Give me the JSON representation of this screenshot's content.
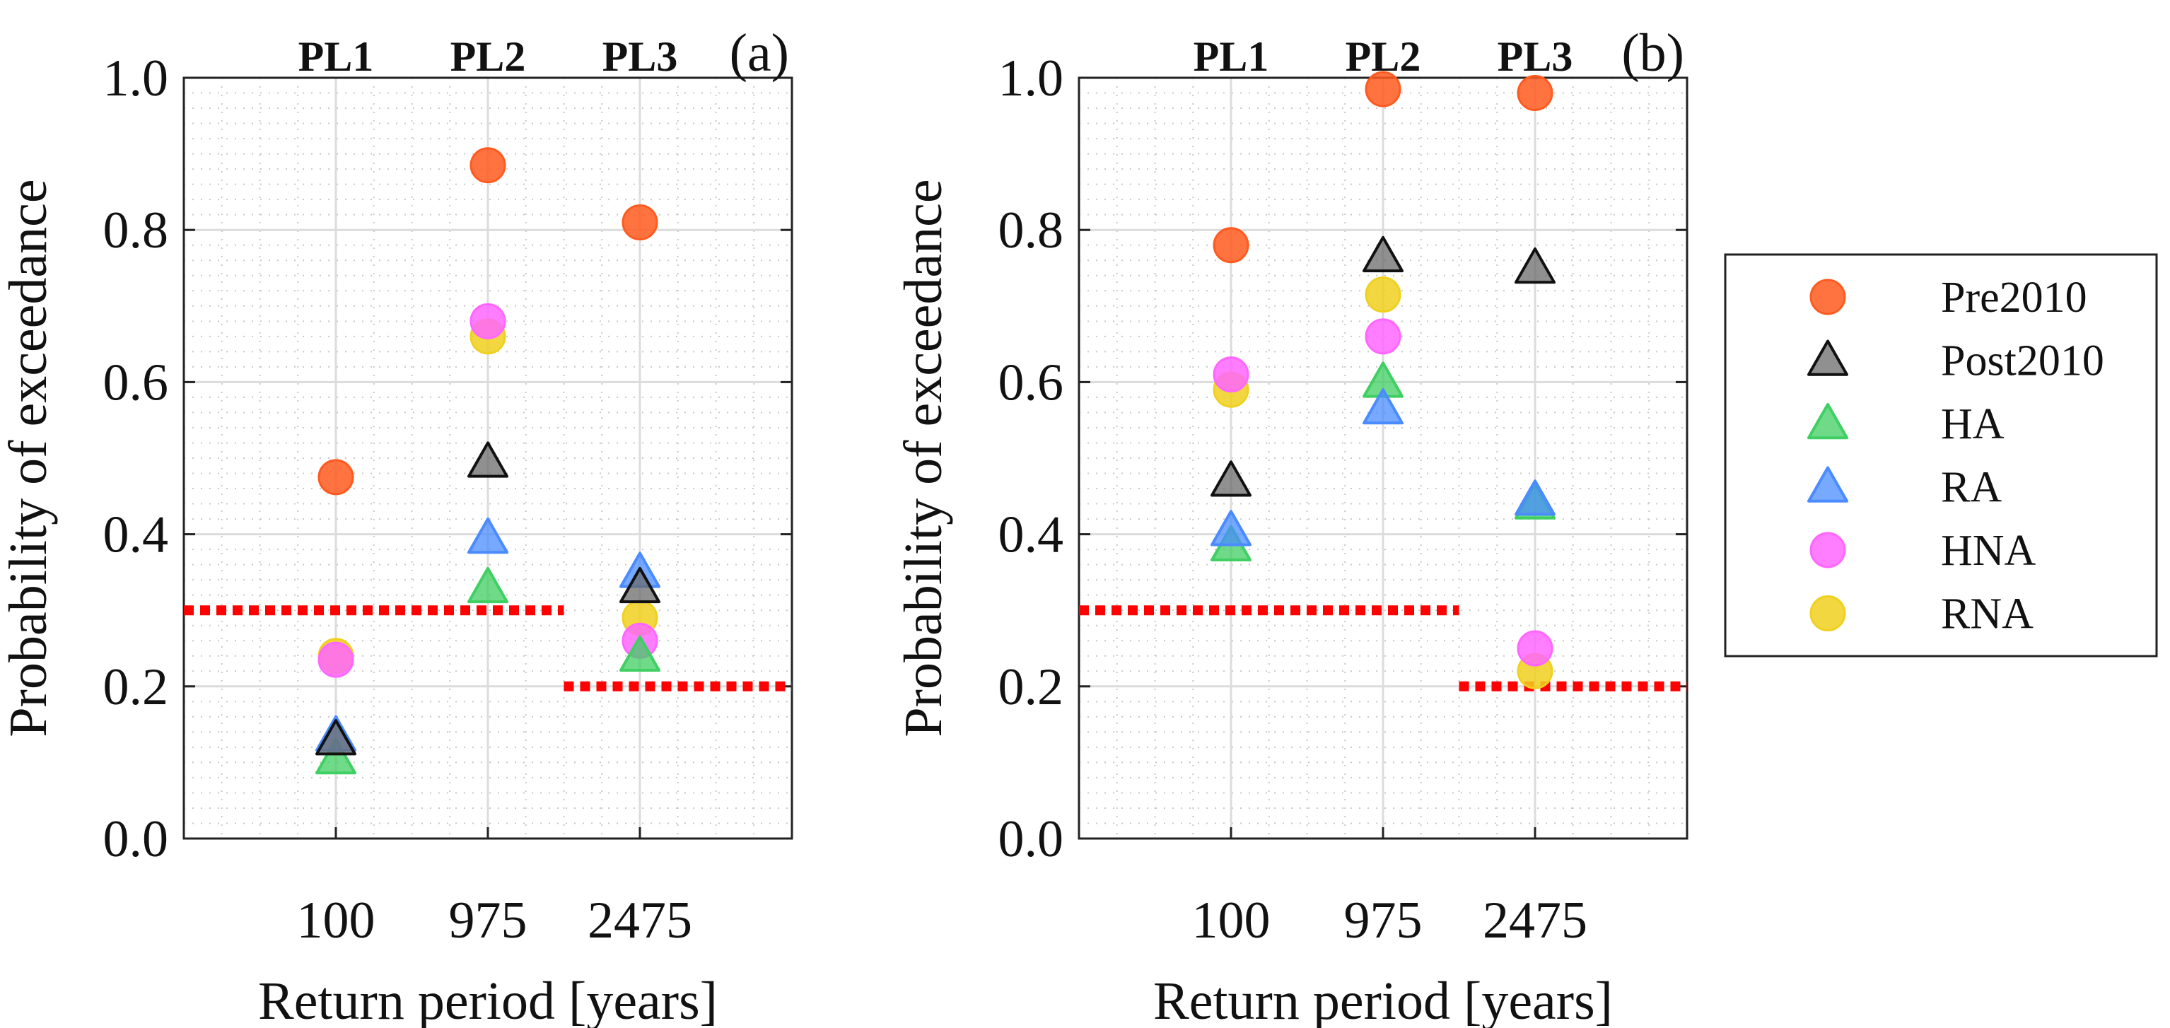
{
  "colors": {
    "Pre2010": "#ff5a1f",
    "Post2010": "#6b6b6b",
    "HA": "#3fcf62",
    "RA": "#4a8cff",
    "HNA": "#ff66ff",
    "RNA": "#f0d01f",
    "threshold": "#ff0000"
  },
  "legend": [
    {
      "name": "Pre2010",
      "marker": "circle"
    },
    {
      "name": "Post2010",
      "marker": "triangle"
    },
    {
      "name": "HA",
      "marker": "triangle"
    },
    {
      "name": "RA",
      "marker": "triangle"
    },
    {
      "name": "HNA",
      "marker": "circle"
    },
    {
      "name": "RNA",
      "marker": "circle"
    }
  ],
  "chart_data": [
    {
      "type": "scatter",
      "panel": "(a)",
      "categories": [
        "100",
        "975",
        "2475"
      ],
      "performance_levels": [
        "PL1",
        "PL2",
        "PL3"
      ],
      "xlabel": "Return period [years]",
      "ylabel": "Probability of exceedance",
      "ylim": [
        0,
        1
      ],
      "yticks": [
        "0.0",
        "0.2",
        "0.4",
        "0.6",
        "0.8",
        "1.0"
      ],
      "grid": true,
      "series": [
        {
          "name": "Pre2010",
          "values": [
            0.475,
            0.885,
            0.81
          ]
        },
        {
          "name": "Post2010",
          "values": [
            0.13,
            0.495,
            0.33
          ]
        },
        {
          "name": "HA",
          "values": [
            0.105,
            0.33,
            0.24
          ]
        },
        {
          "name": "RA",
          "values": [
            0.135,
            0.395,
            0.35
          ]
        },
        {
          "name": "HNA",
          "values": [
            0.235,
            0.68,
            0.26
          ]
        },
        {
          "name": "RNA",
          "values": [
            0.24,
            0.66,
            0.29
          ]
        }
      ],
      "thresholds": [
        {
          "from_category": "100",
          "to_category": "975",
          "value": 0.3
        },
        {
          "from_category": "2475",
          "to_category": "2475",
          "value": 0.2
        }
      ]
    },
    {
      "type": "scatter",
      "panel": "(b)",
      "categories": [
        "100",
        "975",
        "2475"
      ],
      "performance_levels": [
        "PL1",
        "PL2",
        "PL3"
      ],
      "xlabel": "Return period [years]",
      "ylabel": "Probability of exceedance",
      "ylim": [
        0,
        1
      ],
      "yticks": [
        "0.0",
        "0.2",
        "0.4",
        "0.6",
        "0.8",
        "1.0"
      ],
      "grid": true,
      "series": [
        {
          "name": "Pre2010",
          "values": [
            0.78,
            0.985,
            0.98
          ]
        },
        {
          "name": "Post2010",
          "values": [
            0.47,
            0.765,
            0.75
          ]
        },
        {
          "name": "HA",
          "values": [
            0.385,
            0.6,
            0.44
          ]
        },
        {
          "name": "RA",
          "values": [
            0.405,
            0.565,
            0.445
          ]
        },
        {
          "name": "HNA",
          "values": [
            0.61,
            0.66,
            0.25
          ]
        },
        {
          "name": "RNA",
          "values": [
            0.59,
            0.715,
            0.22
          ]
        }
      ],
      "thresholds": [
        {
          "from_category": "100",
          "to_category": "975",
          "value": 0.3
        },
        {
          "from_category": "2475",
          "to_category": "2475",
          "value": 0.2
        }
      ]
    }
  ]
}
